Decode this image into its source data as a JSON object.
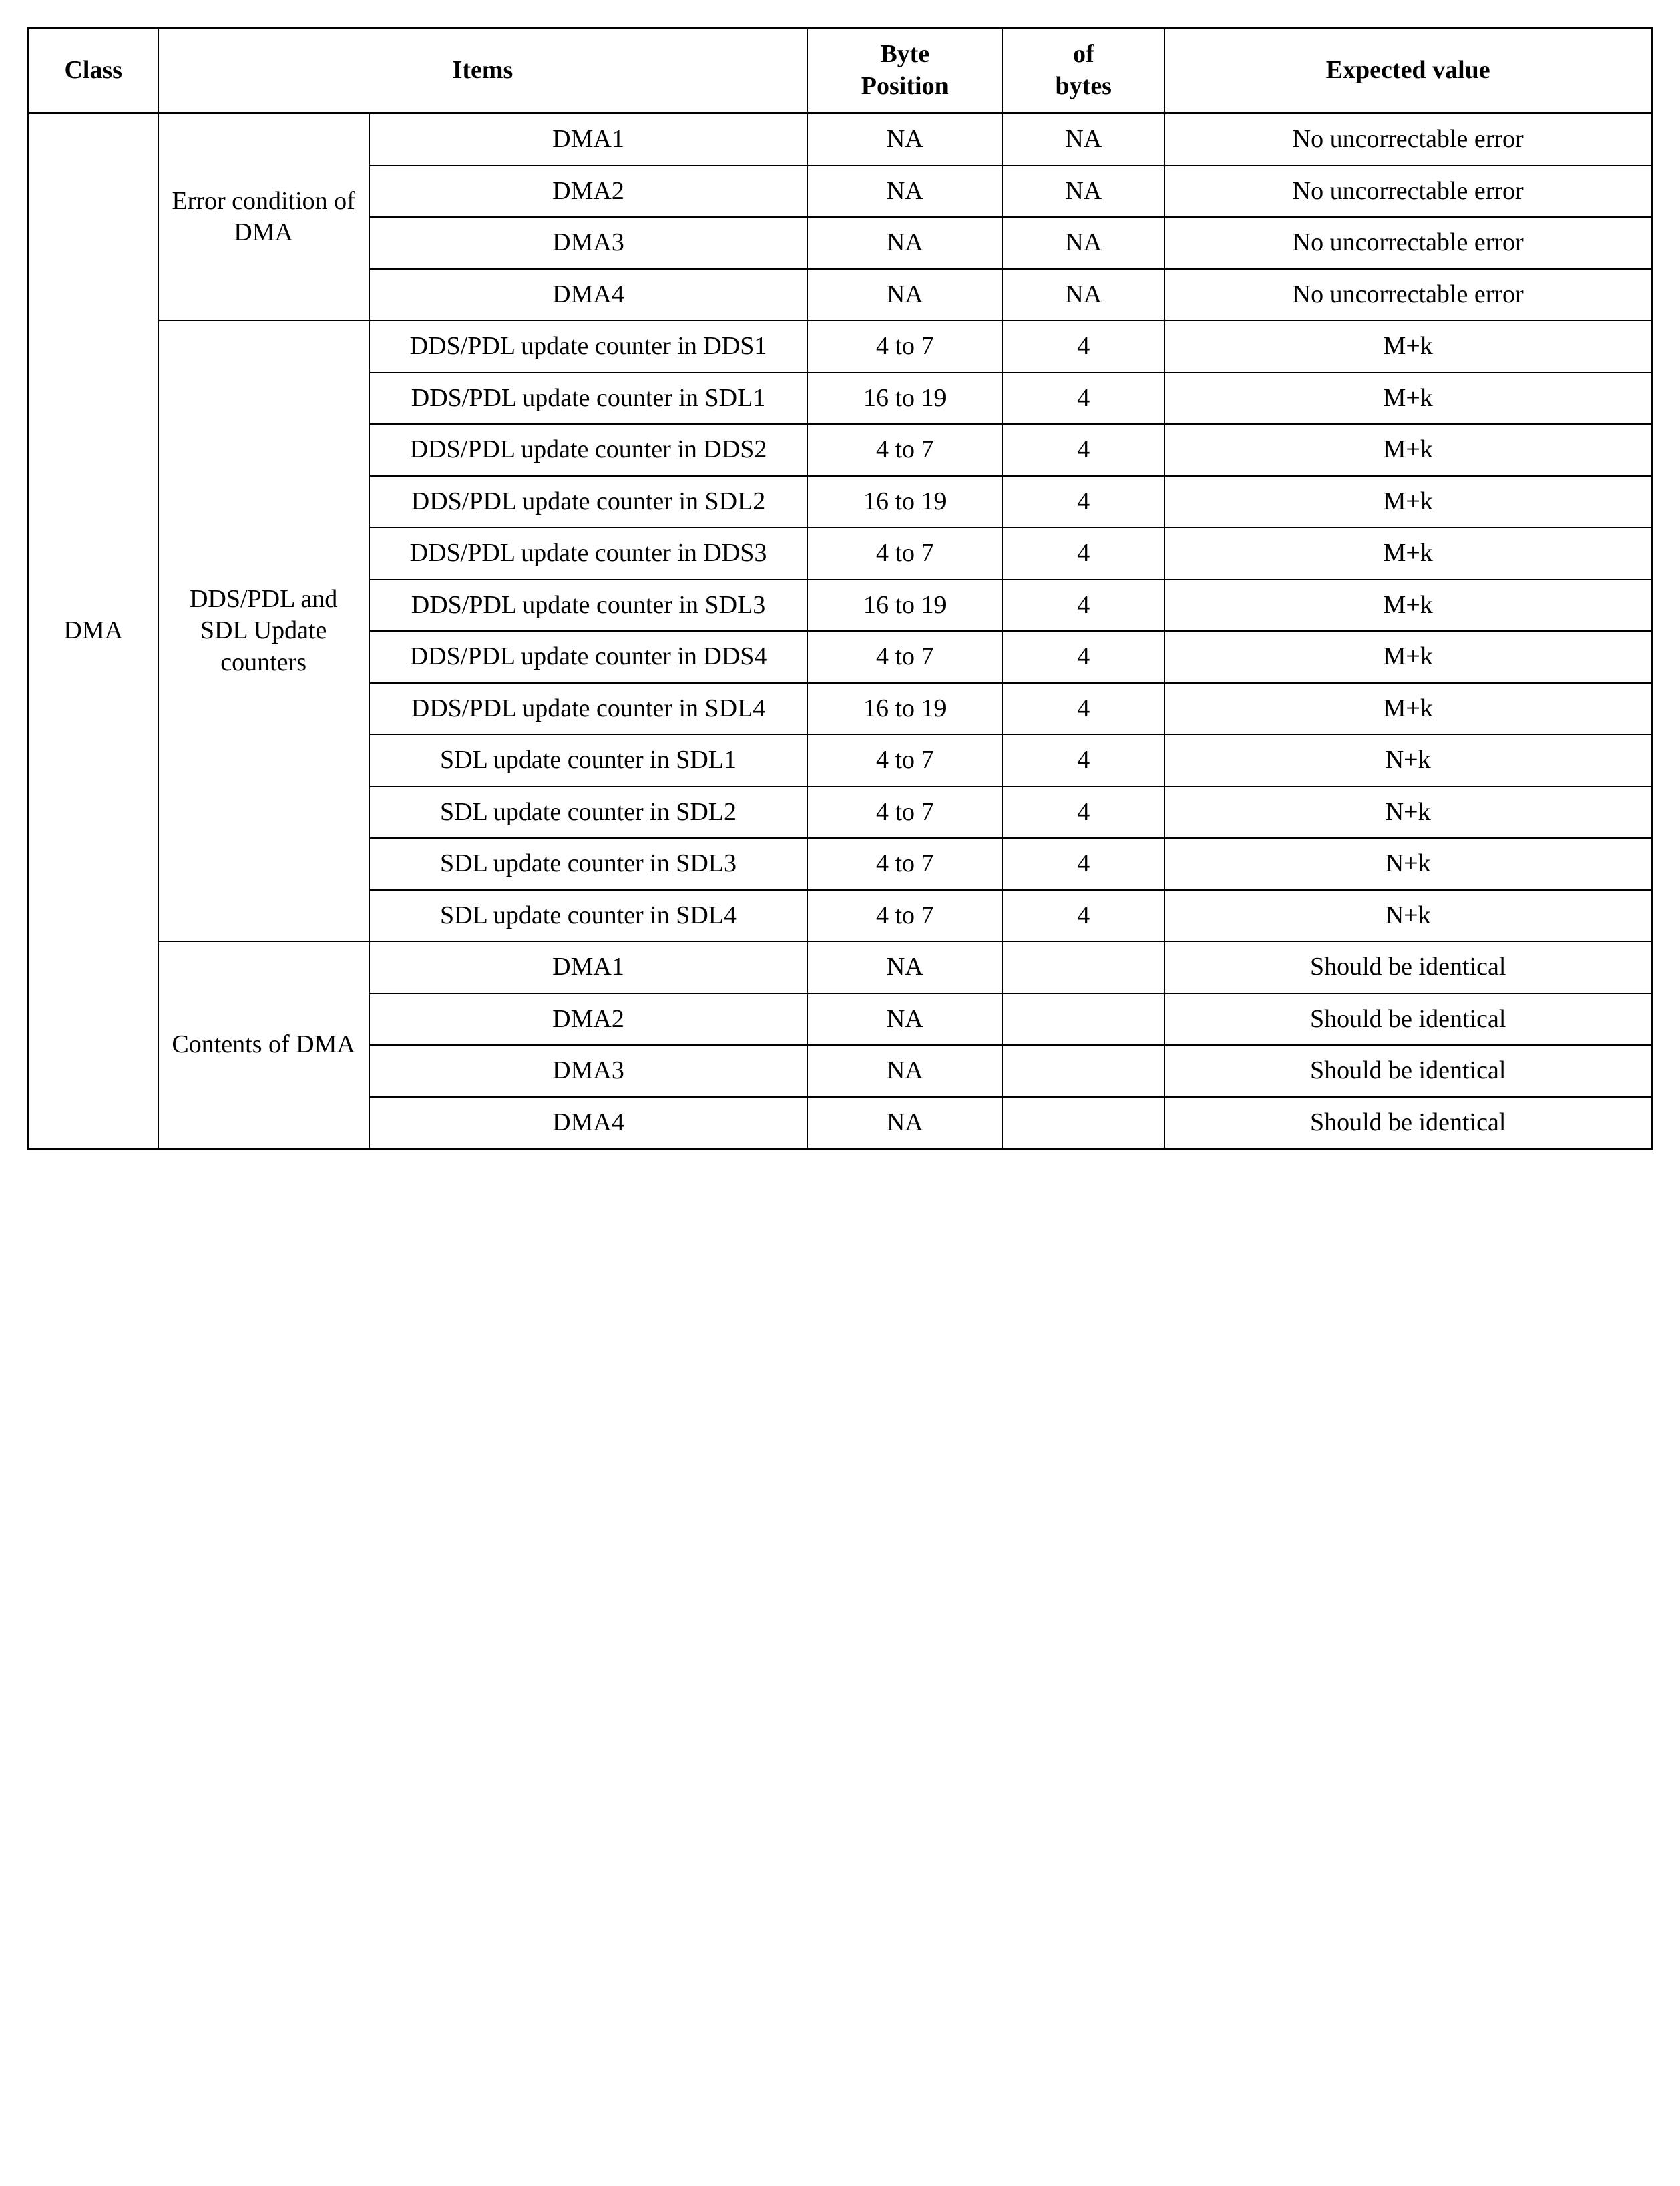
{
  "headers": {
    "class": "Class",
    "items": "Items",
    "bytePosition": "Byte\nPosition",
    "ofBytes": "of\nbytes",
    "expected": "Expected value"
  },
  "classLabel": "DMA",
  "groups": [
    {
      "label": "Error condition of DMA",
      "rows": [
        {
          "item": "DMA1",
          "bytePos": "NA",
          "ofBytes": "NA",
          "expected": "No uncorrectable error"
        },
        {
          "item": "DMA2",
          "bytePos": "NA",
          "ofBytes": "NA",
          "expected": "No uncorrectable error"
        },
        {
          "item": "DMA3",
          "bytePos": "NA",
          "ofBytes": "NA",
          "expected": "No uncorrectable error"
        },
        {
          "item": "DMA4",
          "bytePos": "NA",
          "ofBytes": "NA",
          "expected": "No uncorrectable error"
        }
      ]
    },
    {
      "label": "DDS/PDL and SDL Update counters",
      "rows": [
        {
          "item": "DDS/PDL update counter in DDS1",
          "bytePos": "4 to 7",
          "ofBytes": "4",
          "expected": "M+k"
        },
        {
          "item": "DDS/PDL update counter in SDL1",
          "bytePos": "16 to 19",
          "ofBytes": "4",
          "expected": "M+k"
        },
        {
          "item": "DDS/PDL update counter in DDS2",
          "bytePos": "4 to 7",
          "ofBytes": "4",
          "expected": "M+k"
        },
        {
          "item": "DDS/PDL update counter in SDL2",
          "bytePos": "16 to 19",
          "ofBytes": "4",
          "expected": "M+k"
        },
        {
          "item": "DDS/PDL update counter in DDS3",
          "bytePos": "4 to 7",
          "ofBytes": "4",
          "expected": "M+k"
        },
        {
          "item": "DDS/PDL update counter in SDL3",
          "bytePos": "16 to 19",
          "ofBytes": "4",
          "expected": "M+k"
        },
        {
          "item": "DDS/PDL update counter in DDS4",
          "bytePos": "4 to 7",
          "ofBytes": "4",
          "expected": "M+k"
        },
        {
          "item": "DDS/PDL update counter in SDL4",
          "bytePos": "16 to 19",
          "ofBytes": "4",
          "expected": "M+k"
        },
        {
          "item": "SDL update counter in SDL1",
          "bytePos": "4 to 7",
          "ofBytes": "4",
          "expected": "N+k"
        },
        {
          "item": "SDL update counter in SDL2",
          "bytePos": "4 to 7",
          "ofBytes": "4",
          "expected": "N+k"
        },
        {
          "item": "SDL update counter in SDL3",
          "bytePos": "4 to 7",
          "ofBytes": "4",
          "expected": "N+k"
        },
        {
          "item": "SDL update counter in SDL4",
          "bytePos": "4 to 7",
          "ofBytes": "4",
          "expected": "N+k"
        }
      ]
    },
    {
      "label": "Contents of DMA",
      "rows": [
        {
          "item": "DMA1",
          "bytePos": "NA",
          "ofBytes": "",
          "expected": "Should be identical"
        },
        {
          "item": "DMA2",
          "bytePos": "NA",
          "ofBytes": "",
          "expected": "Should be identical"
        },
        {
          "item": "DMA3",
          "bytePos": "NA",
          "ofBytes": "",
          "expected": "Should be identical"
        },
        {
          "item": "DMA4",
          "bytePos": "NA",
          "ofBytes": "",
          "expected": "Should be identical"
        }
      ]
    }
  ]
}
